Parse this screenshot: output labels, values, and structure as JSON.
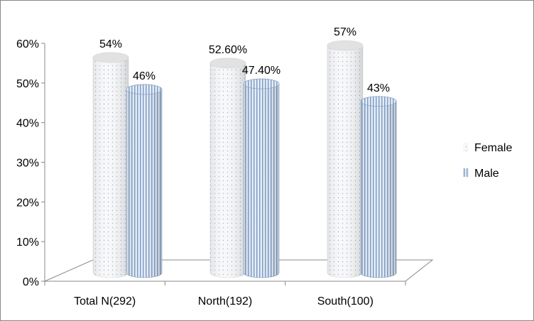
{
  "chart_data": {
    "type": "bar",
    "style": "3d-cylinder",
    "categories": [
      "Total N(292)",
      "North(192)",
      "South(100)"
    ],
    "series": [
      {
        "name": "Female",
        "values": [
          54,
          52.6,
          57
        ],
        "labels": [
          "54%",
          "52.60%",
          "57%"
        ],
        "pattern": "dotted",
        "color": "#f4f6f9"
      },
      {
        "name": "Male",
        "values": [
          46,
          47.4,
          43
        ],
        "labels": [
          "46%",
          "47.40%",
          "43%"
        ],
        "pattern": "vertical-stripes",
        "color": "#a9c0dc"
      }
    ],
    "yticks": [
      "0%",
      "10%",
      "20%",
      "30%",
      "40%",
      "50%",
      "60%"
    ],
    "ylim": [
      0,
      60
    ],
    "grid": false,
    "legend": "right"
  }
}
